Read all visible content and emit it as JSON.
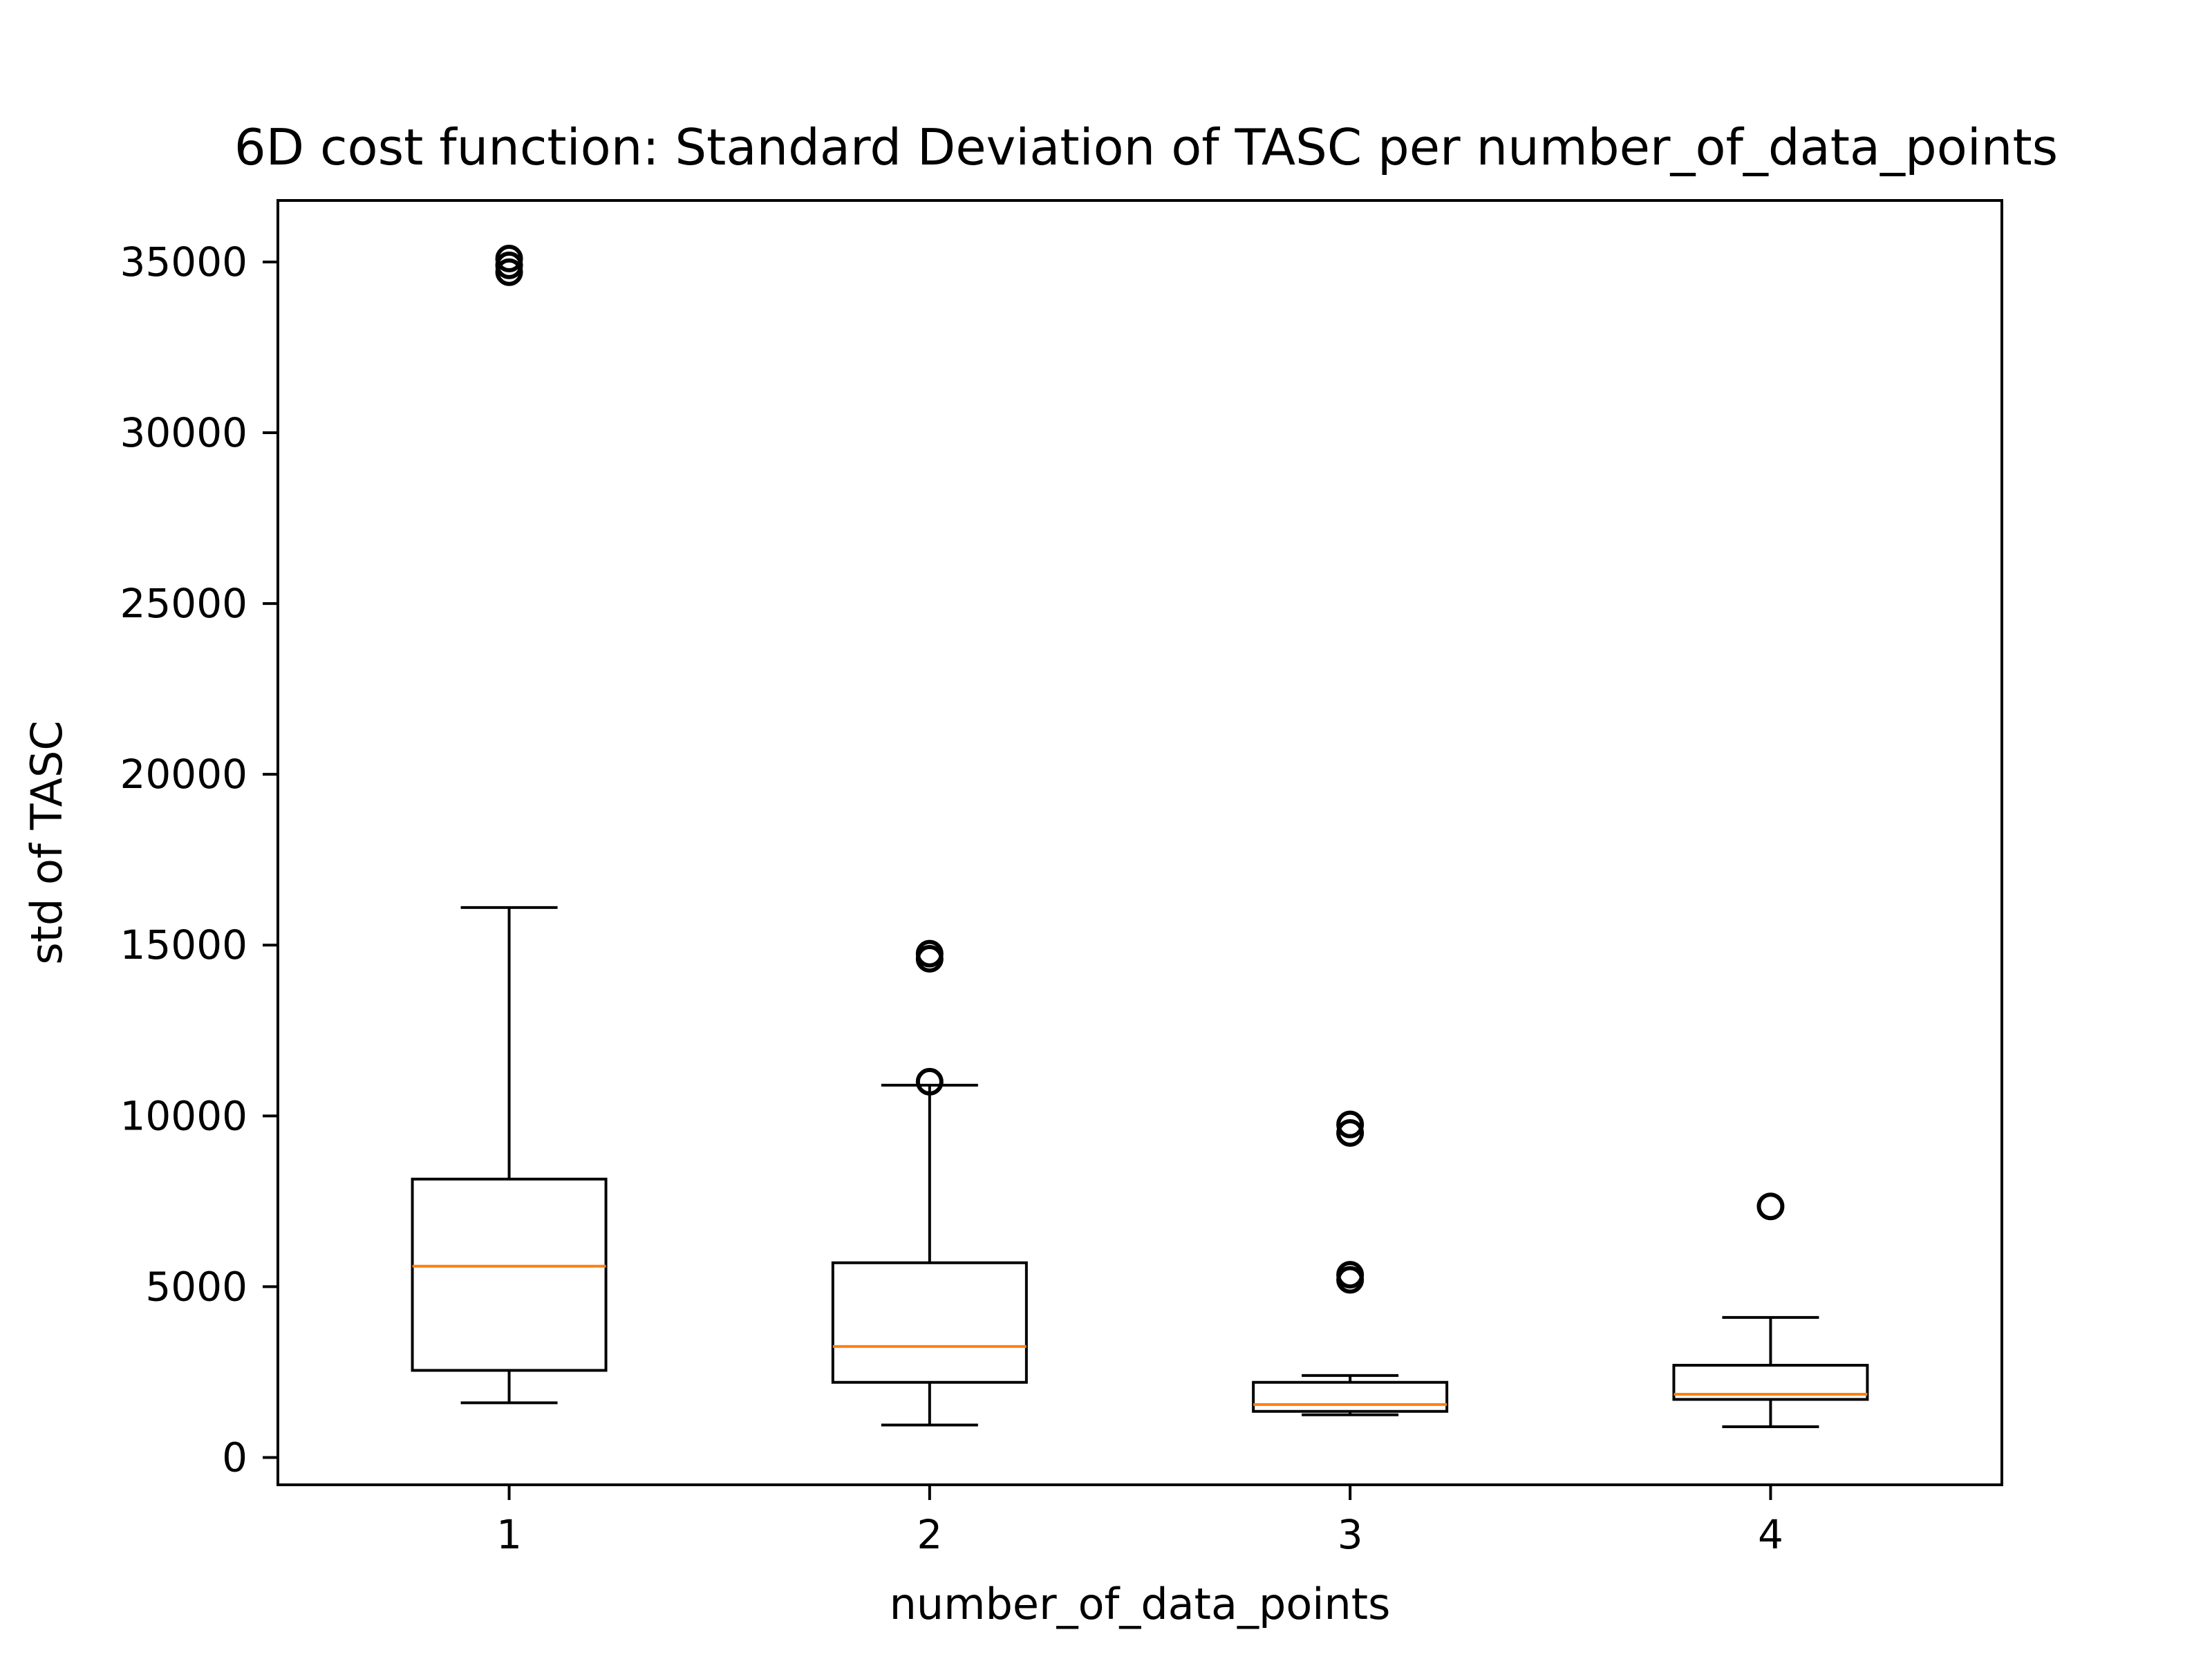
{
  "chart_data": {
    "type": "box",
    "title": "6D cost function: Standard Deviation of TASC per number_of_data_points",
    "xlabel": "number_of_data_points",
    "ylabel": "std of TASC",
    "categories": [
      "1",
      "2",
      "3",
      "4"
    ],
    "ylim": [
      -800,
      36800
    ],
    "yticks": [
      0,
      5000,
      10000,
      15000,
      20000,
      25000,
      30000,
      35000
    ],
    "ytick_labels": [
      "0",
      "5000",
      "10000",
      "15000",
      "20000",
      "25000",
      "30000",
      "35000"
    ],
    "grid": false,
    "boxes": [
      {
        "category": "1",
        "whisker_low": 1600,
        "q1": 2550,
        "median": 5600,
        "q3": 8150,
        "whisker_high": 16100,
        "outliers": [
          34700,
          34900,
          35100
        ]
      },
      {
        "category": "2",
        "whisker_low": 950,
        "q1": 2200,
        "median": 3250,
        "q3": 5700,
        "whisker_high": 10900,
        "outliers": [
          11000,
          14600,
          14750
        ]
      },
      {
        "category": "3",
        "whisker_low": 1250,
        "q1": 1350,
        "median": 1550,
        "q3": 2200,
        "whisker_high": 2400,
        "outliers": [
          5200,
          5350,
          9500,
          9750
        ]
      },
      {
        "category": "4",
        "whisker_low": 900,
        "q1": 1700,
        "median": 1850,
        "q3": 2700,
        "whisker_high": 4100,
        "outliers": [
          7350
        ]
      }
    ],
    "colors": {
      "box": "#000000",
      "median": "#ff7f0e",
      "outlier": "#000000"
    }
  }
}
